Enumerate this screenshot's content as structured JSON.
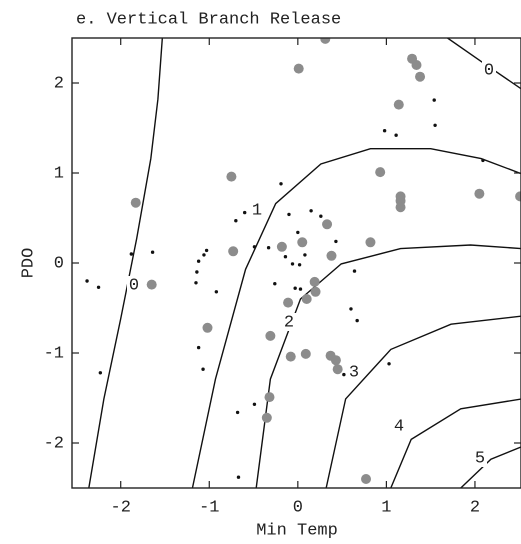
{
  "chart_data": {
    "type": "scatter",
    "title": "e. Vertical Branch Release",
    "x_label": "Min Temp",
    "y_label": "PDO",
    "xlim": [
      -2.55,
      2.52
    ],
    "ylim": [
      -2.5,
      2.5
    ],
    "xticks": [
      -2,
      -1,
      0,
      1,
      2
    ],
    "yticks": [
      -2,
      -1,
      0,
      1,
      2
    ],
    "series": [
      {
        "color": "#8c8c8c",
        "x": [
          -1.83,
          -1.65,
          -0.75,
          -0.73,
          -1.02,
          -0.31,
          -0.32,
          -0.35,
          -0.18,
          0.05,
          -0.11,
          -0.08,
          0.09,
          0.1,
          0.19,
          0.2,
          0.33,
          0.38,
          0.37,
          0.43,
          0.45,
          0.82,
          0.93,
          0.77,
          0.01,
          0.31,
          1.14,
          1.29,
          1.34,
          1.38,
          1.16,
          1.16,
          1.16,
          2.05,
          2.51
        ],
        "values": [
          0.67,
          -0.24,
          0.96,
          0.13,
          -0.72,
          -0.81,
          -1.49,
          -1.72,
          0.18,
          0.23,
          -0.44,
          -1.04,
          -1.01,
          -0.4,
          -0.21,
          -0.32,
          0.43,
          0.08,
          -1.03,
          -1.08,
          -1.18,
          0.23,
          1.01,
          -2.4,
          2.16,
          2.49,
          1.76,
          2.27,
          2.2,
          2.07,
          0.74,
          0.69,
          0.62,
          0.77,
          0.74
        ]
      },
      {
        "color": "#111111",
        "x": [
          -2.38,
          -2.25,
          -2.23,
          -1.88,
          -1.64,
          -1.12,
          -1.06,
          -1.03,
          -1.14,
          -1.15,
          -0.92,
          -1.12,
          -1.07,
          -0.7,
          -0.6,
          -0.49,
          -0.33,
          -0.19,
          -0.1,
          0,
          -0.14,
          -0.06,
          0.02,
          0.08,
          0.15,
          0.26,
          0.43,
          -0.26,
          -0.03,
          0.03,
          0.64,
          0.6,
          0.67,
          -0.68,
          -0.49,
          -0.67,
          0.52,
          1.03,
          0.98,
          1.11,
          1.54,
          1.55,
          2.09
        ],
        "values": [
          -0.2,
          -0.27,
          -1.22,
          0.1,
          0.12,
          0.02,
          0.09,
          0.14,
          -0.1,
          -0.22,
          -0.32,
          -0.94,
          -1.18,
          0.47,
          0.56,
          0.18,
          0.17,
          0.88,
          0.54,
          0.34,
          0.07,
          -0.01,
          -0.02,
          0.09,
          0.58,
          0.52,
          0.24,
          -0.23,
          -0.28,
          -0.29,
          -0.09,
          -0.51,
          -0.64,
          -1.66,
          -1.57,
          -2.38,
          -1.24,
          -1.12,
          1.47,
          1.42,
          1.81,
          1.53,
          1.14
        ]
      }
    ],
    "contours": [
      {
        "level": 0,
        "x": [
          -1.53,
          -1.58,
          -1.66,
          -1.82,
          -2.0,
          -2.19,
          -2.36
        ],
        "y": [
          2.5,
          1.82,
          1.16,
          0.27,
          -0.62,
          -1.51,
          -2.5
        ]
      },
      {
        "level": 0,
        "x": [
          1.69,
          2.07,
          2.53
        ],
        "y": [
          2.5,
          2.24,
          1.93
        ]
      },
      {
        "level": 1,
        "x": [
          -1.19,
          -0.93,
          -0.59,
          -0.25,
          0.26,
          0.82,
          1.5,
          2.07,
          2.53
        ],
        "y": [
          -2.5,
          -1.29,
          -0.07,
          0.66,
          1.1,
          1.27,
          1.27,
          1.16,
          0.99
        ]
      },
      {
        "level": 2,
        "x": [
          -0.47,
          -0.31,
          0.03,
          0.49,
          1.16,
          1.95,
          2.53
        ],
        "y": [
          -2.5,
          -1.29,
          -0.4,
          -0.01,
          0.16,
          0.2,
          0.16
        ]
      },
      {
        "level": 3,
        "x": [
          0.32,
          0.54,
          1.05,
          1.73,
          2.53
        ],
        "y": [
          -2.5,
          -1.51,
          -0.96,
          -0.68,
          -0.59
        ]
      },
      {
        "level": 4,
        "x": [
          1.05,
          1.28,
          1.84,
          2.53
        ],
        "y": [
          -2.5,
          -1.96,
          -1.62,
          -1.51
        ]
      },
      {
        "level": 5,
        "x": [
          1.84,
          2.18,
          2.53
        ],
        "y": [
          -2.5,
          -2.18,
          -2.04
        ]
      }
    ]
  }
}
